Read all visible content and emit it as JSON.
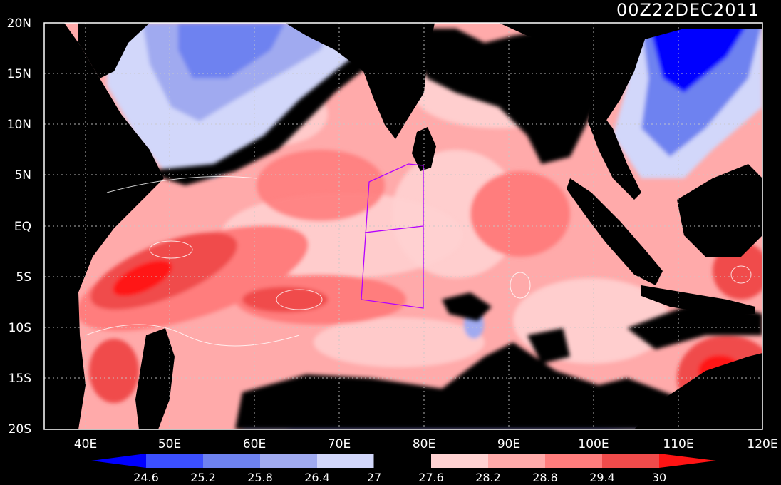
{
  "title": "00Z22DEC2011",
  "lat_labels": [
    "20N",
    "15N",
    "10N",
    "5N",
    "EQ",
    "5S",
    "10S",
    "15S",
    "20S"
  ],
  "lon_labels": [
    "40E",
    "50E",
    "60E",
    "70E",
    "80E",
    "90E",
    "100E",
    "110E",
    "120E"
  ],
  "colorbar": {
    "labels": [
      "24.6",
      "25.2",
      "25.8",
      "26.4",
      "27",
      "27.6",
      "28.2",
      "28.8",
      "29.4",
      "30"
    ],
    "colors": [
      "#0000ff",
      "#3c50ff",
      "#6e82f0",
      "#a0aaf0",
      "#d2d7fa",
      "#000000",
      "#ffd2d2",
      "#ffaaaa",
      "#ff7d7d",
      "#f04b4b",
      "#ff1414"
    ]
  },
  "colors": {
    "background": "#000000",
    "land": "#000000",
    "grid": "#c8c8c8",
    "frame": "#ffffff",
    "box": "#b400ff"
  }
}
